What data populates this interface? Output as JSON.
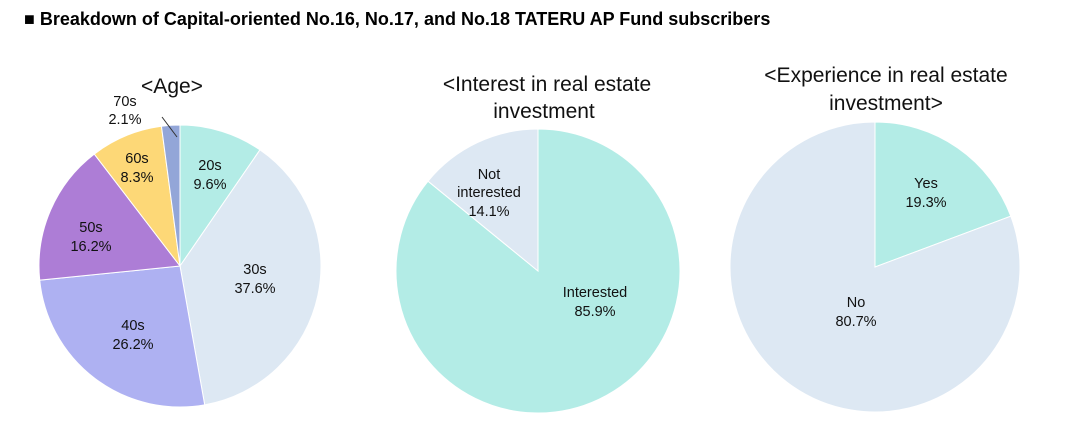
{
  "page_title": "■ Breakdown of Capital-oriented No.16, No.17, and No.18 TATERU AP Fund subscribers",
  "chart_data": [
    {
      "type": "pie",
      "title": "<Age>",
      "slices": [
        {
          "label": "20s",
          "value": 9.6,
          "value_label": "9.6%",
          "color": "#b3ece6"
        },
        {
          "label": "30s",
          "value": 37.6,
          "value_label": "37.6%",
          "color": "#dde8f3"
        },
        {
          "label": "40s",
          "value": 26.2,
          "value_label": "26.2%",
          "color": "#aeb1f2"
        },
        {
          "label": "50s",
          "value": 16.2,
          "value_label": "16.2%",
          "color": "#ad7dd6"
        },
        {
          "label": "60s",
          "value": 8.3,
          "value_label": "8.3%",
          "color": "#fdd877"
        },
        {
          "label": "70s",
          "value": 2.1,
          "value_label": "2.1%",
          "color": "#93a6d8"
        }
      ]
    },
    {
      "type": "pie",
      "title_lines": [
        "<Interest in real estate",
        "investment"
      ],
      "slices": [
        {
          "label": "Interested",
          "value": 85.9,
          "value_label": "85.9%",
          "color": "#b3ece6"
        },
        {
          "label": "Not interested",
          "label_lines": [
            "Not",
            "interested"
          ],
          "value": 14.1,
          "value_label": "14.1%",
          "color": "#dde8f3"
        }
      ]
    },
    {
      "type": "pie",
      "title_lines": [
        "<Experience in real estate",
        "investment>"
      ],
      "slices": [
        {
          "label": "Yes",
          "value": 19.3,
          "value_label": "19.3%",
          "color": "#b3ece6"
        },
        {
          "label": "No",
          "value": 80.7,
          "value_label": "80.7%",
          "color": "#dde8f3"
        }
      ]
    }
  ]
}
